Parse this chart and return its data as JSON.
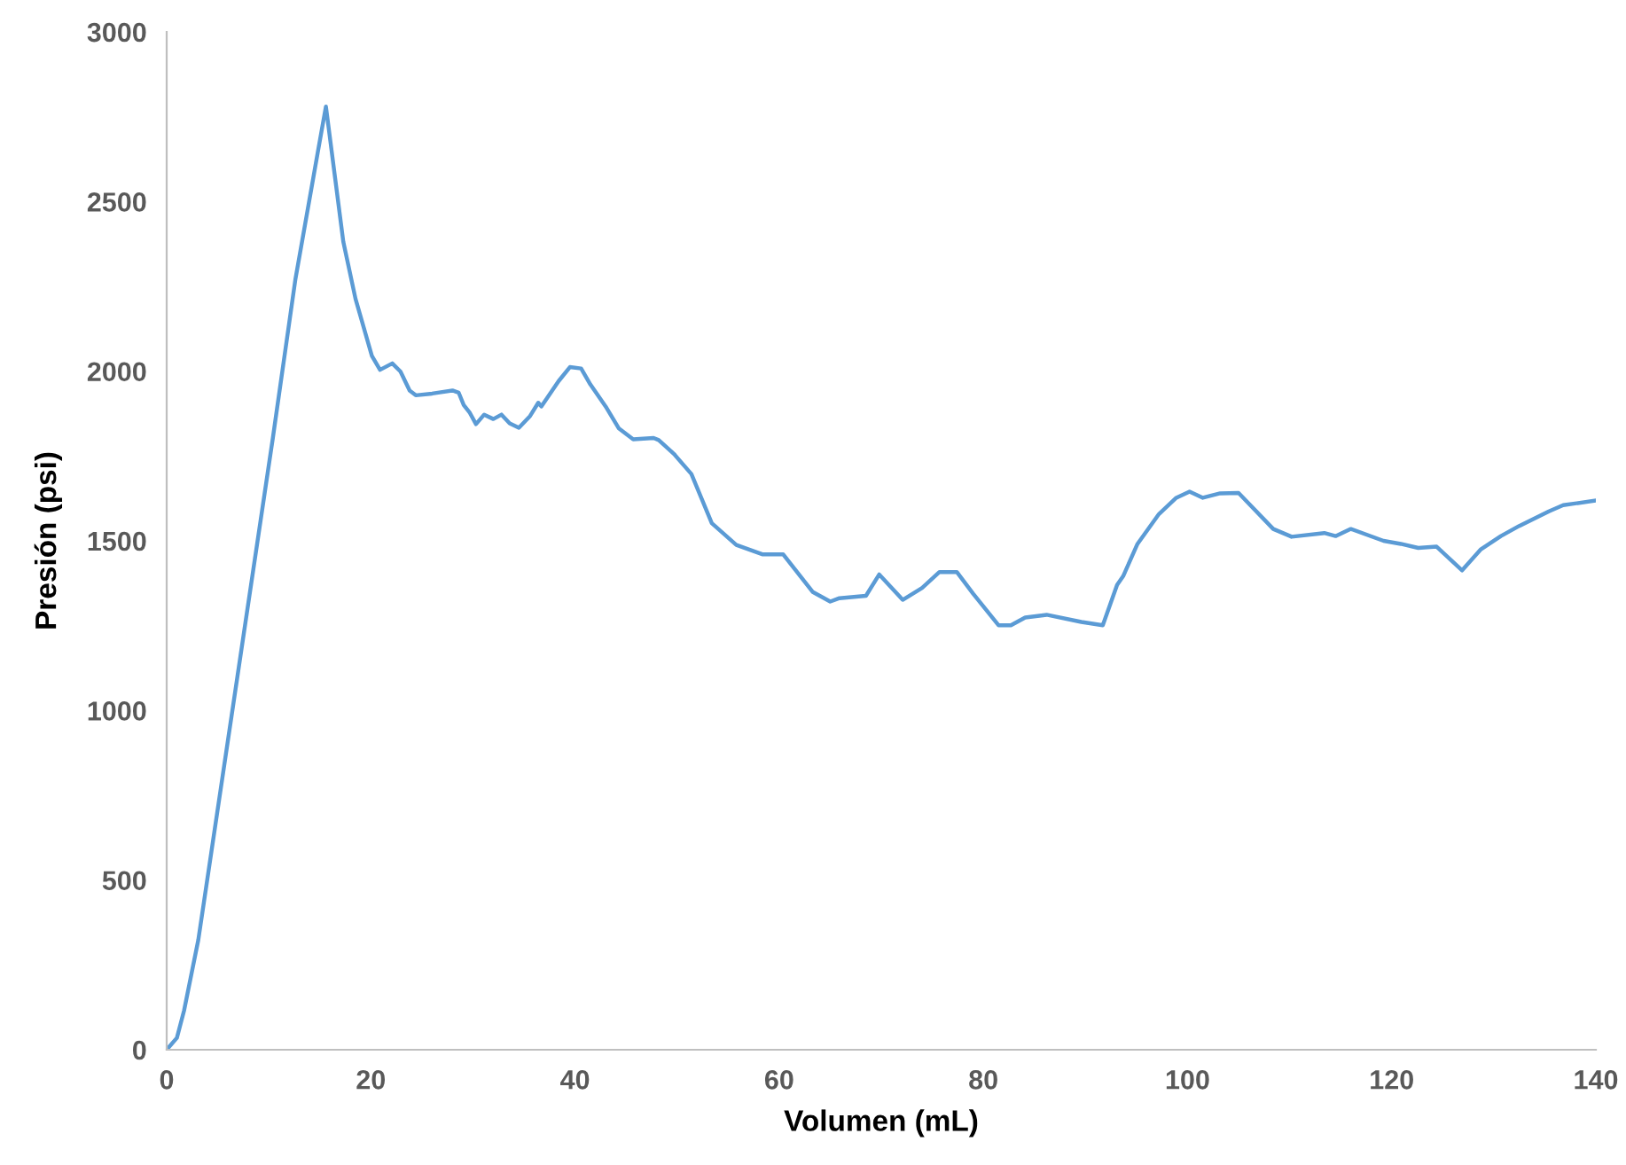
{
  "chart_data": {
    "type": "line",
    "xlabel": "Volumen (mL)",
    "ylabel": "Presión (psi)",
    "xlim": [
      0,
      140
    ],
    "xticks": [
      0,
      20,
      40,
      60,
      80,
      100,
      120,
      140
    ],
    "ylim": [
      0,
      3000
    ],
    "yticks": [
      0,
      500,
      1000,
      1500,
      2000,
      2500,
      3000
    ],
    "grid": false,
    "marker": "none",
    "line_style": "solid",
    "series": [
      {
        "color": "#5b9bd5",
        "x": [
          0,
          1,
          1.7,
          3.1,
          10.4,
          12.6,
          14.8,
          15.6,
          17.3,
          18.5,
          20.1,
          20.9,
          22.1,
          22.9,
          23.8,
          24.4,
          26.0,
          28.0,
          28.6,
          29.1,
          29.7,
          30.3,
          31.1,
          32.0,
          32.8,
          33.6,
          34.5,
          35.6,
          36.4,
          36.7,
          38.4,
          39.5,
          40.6,
          41.5,
          43.0,
          44.3,
          45.7,
          47.7,
          48.2,
          49.7,
          51.4,
          53.4,
          55.8,
          58.4,
          60.4,
          63.3,
          65.0,
          65.9,
          68.5,
          69.8,
          72.1,
          74.0,
          75.7,
          77.4,
          79.0,
          81.5,
          82.7,
          84.1,
          86.2,
          89.6,
          91.7,
          93.1,
          93.7,
          95.1,
          97.2,
          98.9,
          100.2,
          101.5,
          103.2,
          105.0,
          108.4,
          110.2,
          113.4,
          114.5,
          116.0,
          119.2,
          120.9,
          122.6,
          124.4,
          126.9,
          128.7,
          130.7,
          132.5,
          135.4,
          136.8,
          140.0
        ],
        "values": [
          0,
          35,
          115,
          324,
          1803,
          2269,
          2645,
          2780,
          2382,
          2213,
          2045,
          2004,
          2023,
          1999,
          1943,
          1929,
          1934,
          1943,
          1937,
          1900,
          1877,
          1844,
          1872,
          1859,
          1872,
          1846,
          1833,
          1868,
          1907,
          1896,
          1971,
          2012,
          2008,
          1961,
          1896,
          1831,
          1799,
          1803,
          1797,
          1756,
          1697,
          1552,
          1488,
          1460,
          1460,
          1349,
          1321,
          1331,
          1338,
          1401,
          1326,
          1361,
          1408,
          1408,
          1344,
          1251,
          1251,
          1274,
          1282,
          1261,
          1251,
          1370,
          1396,
          1491,
          1579,
          1627,
          1645,
          1627,
          1640,
          1641,
          1535,
          1512,
          1523,
          1514,
          1535,
          1500,
          1491,
          1479,
          1483,
          1413,
          1474,
          1514,
          1544,
          1587,
          1605,
          1619
        ]
      }
    ]
  }
}
